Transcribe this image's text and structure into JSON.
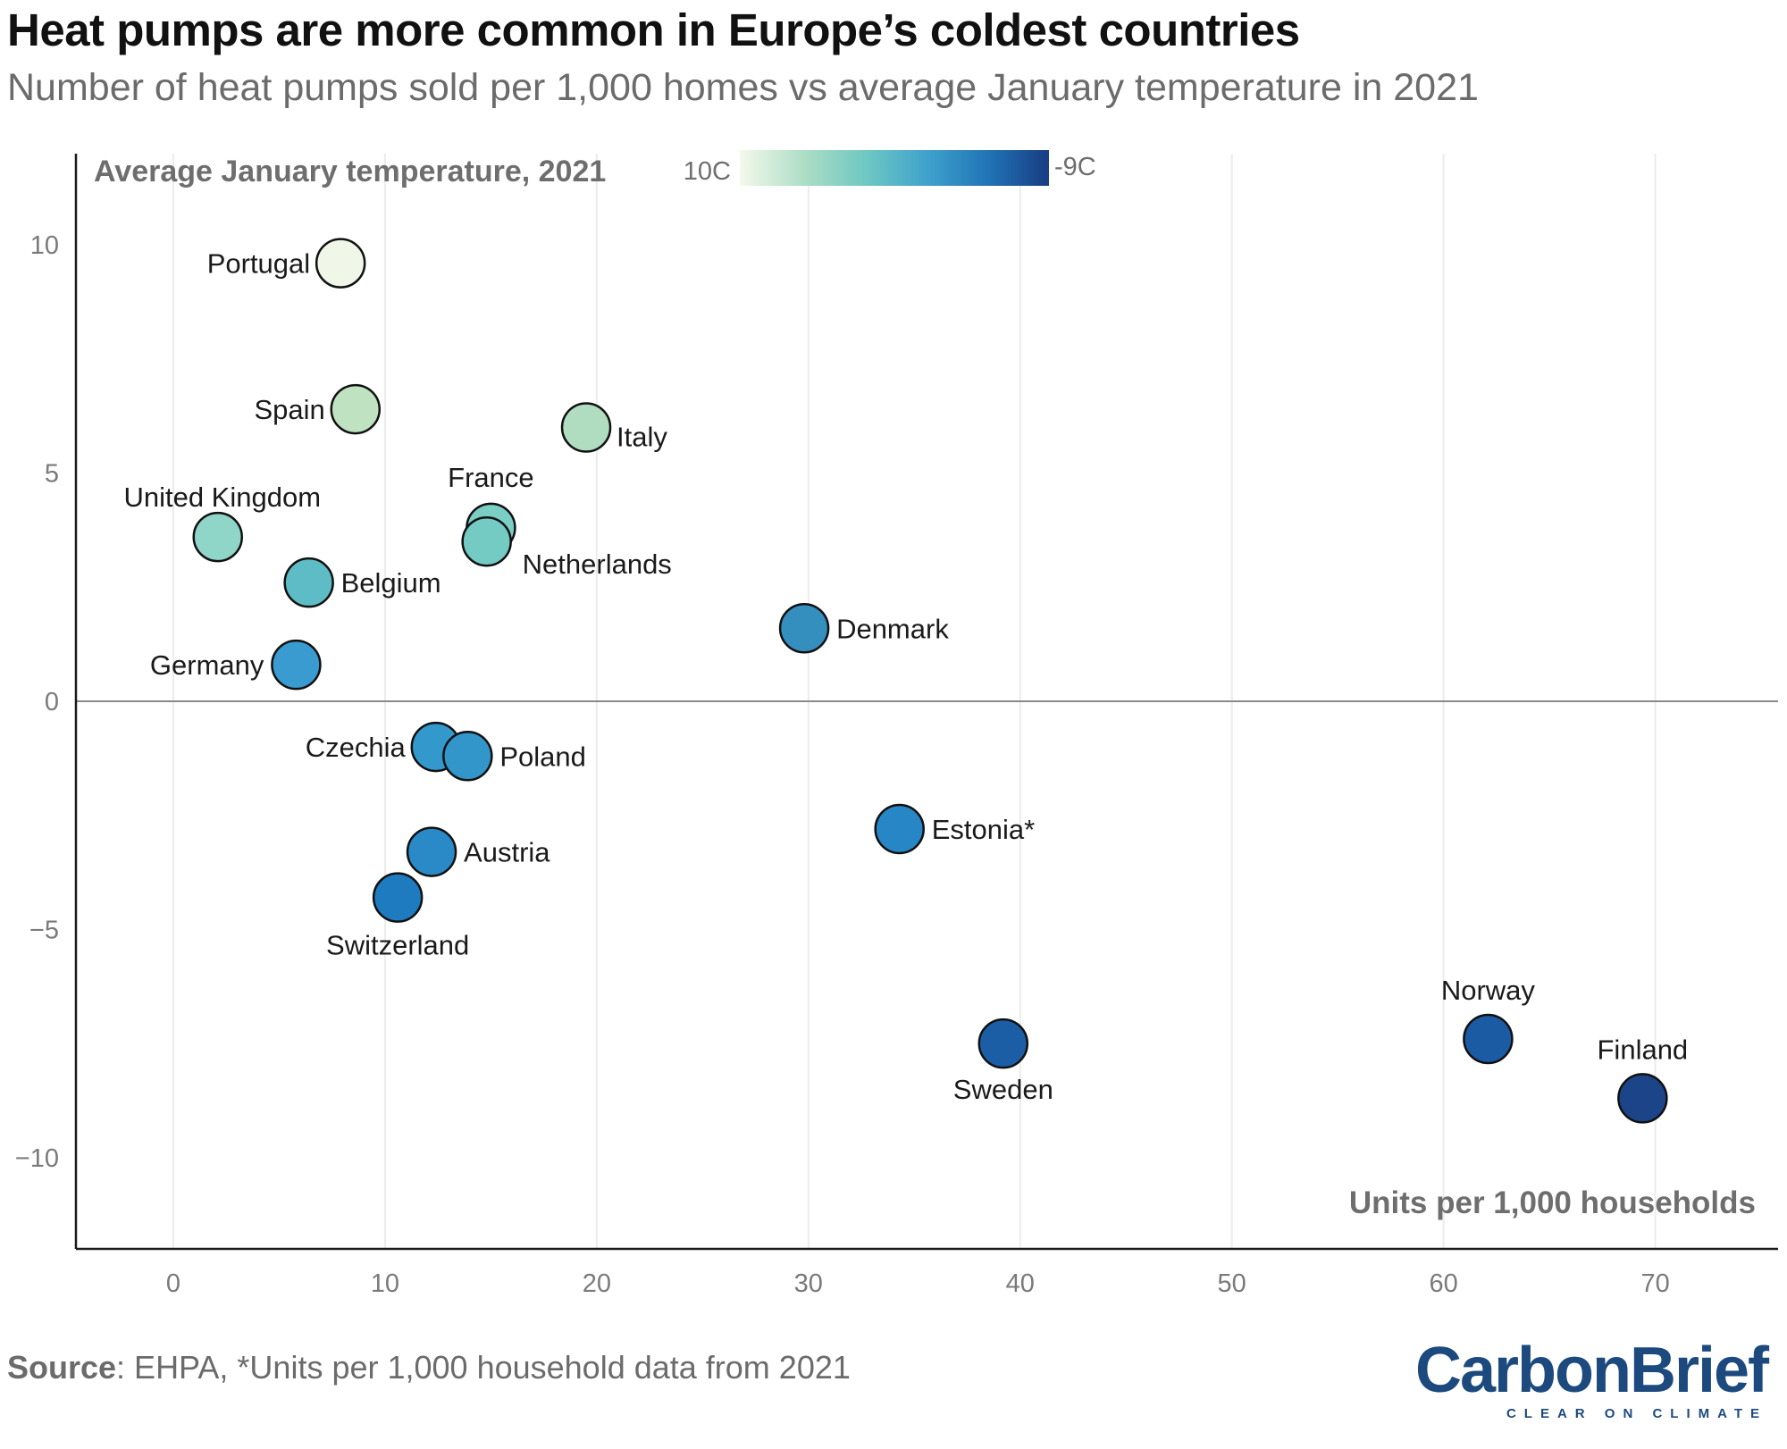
{
  "title": "Heat pumps are more common in Europe’s coldest countries",
  "subtitle": "Number of heat pumps sold per 1,000 homes vs average January temperature in 2021",
  "source_label": "Source",
  "source_text": ": EHPA, *Units per 1,000 household data from 2021",
  "logo": {
    "name": "CarbonBrief",
    "tagline": "CLEAR ON CLIMATE"
  },
  "chart_data": {
    "type": "scatter",
    "title": "Heat pumps are more common in Europe’s coldest countries",
    "subtitle": "Number of heat pumps sold per 1,000 homes vs average January temperature in 2021",
    "xlabel": "Units per 1,000 households",
    "ylabel": "",
    "xlim": [
      -4.6,
      75.8
    ],
    "ylim": [
      -12,
      12
    ],
    "x_ticks": [
      0,
      10,
      20,
      30,
      40,
      50,
      60,
      70
    ],
    "y_ticks": [
      10,
      5,
      0,
      -5,
      -10
    ],
    "y_tick_labels": [
      "10",
      "5",
      "0",
      "−5",
      "−10"
    ],
    "grid": "vertical",
    "color_legend": {
      "title": "Average January temperature, 2021",
      "min_label": "10C",
      "max_label": "-9C",
      "colors": [
        "#f4f9ec",
        "#aadcc4",
        "#6cc7c3",
        "#3ea0cc",
        "#1f72b4",
        "#1a3f85"
      ]
    },
    "points": [
      {
        "label": "Portugal",
        "x": 7.9,
        "y": 9.6,
        "color": "#f1f7e8"
      },
      {
        "label": "Spain",
        "x": 8.6,
        "y": 6.4,
        "color": "#bfe3c0"
      },
      {
        "label": "Italy",
        "x": 19.5,
        "y": 6.0,
        "color": "#b0ddc0"
      },
      {
        "label": "United Kingdom",
        "x": 2.1,
        "y": 3.6,
        "color": "#8fd5c8"
      },
      {
        "label": "France",
        "x": 15.0,
        "y": 3.8,
        "color": "#7bcec4"
      },
      {
        "label": "Netherlands",
        "x": 14.8,
        "y": 3.5,
        "color": "#74cbc4"
      },
      {
        "label": "Belgium",
        "x": 6.4,
        "y": 2.6,
        "color": "#5ebcc6"
      },
      {
        "label": "Denmark",
        "x": 29.8,
        "y": 1.6,
        "color": "#348fbe"
      },
      {
        "label": "Germany",
        "x": 5.8,
        "y": 0.8,
        "color": "#3a9bd0"
      },
      {
        "label": "Czechia",
        "x": 12.4,
        "y": -1.0,
        "color": "#3398cc"
      },
      {
        "label": "Poland",
        "x": 13.9,
        "y": -1.2,
        "color": "#3396cb"
      },
      {
        "label": "Estonia*",
        "x": 34.3,
        "y": -2.8,
        "color": "#2786c5"
      },
      {
        "label": "Austria",
        "x": 12.2,
        "y": -3.3,
        "color": "#2a8ac7"
      },
      {
        "label": "Switzerland",
        "x": 10.6,
        "y": -4.3,
        "color": "#1f7bbf"
      },
      {
        "label": "Sweden",
        "x": 39.2,
        "y": -7.5,
        "color": "#1b5ea6"
      },
      {
        "label": "Norway",
        "x": 62.1,
        "y": -7.4,
        "color": "#1b5ba3"
      },
      {
        "label": "Finland",
        "x": 69.4,
        "y": -8.7,
        "color": "#1c4589"
      }
    ]
  }
}
